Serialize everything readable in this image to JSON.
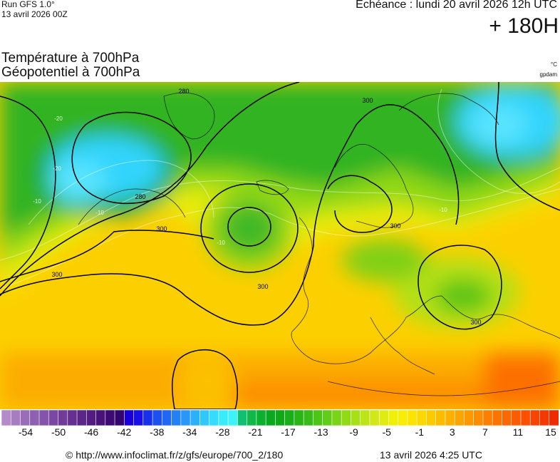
{
  "header": {
    "run": "Run GFS 1.0°",
    "run_date": "13 avril 2026 00Z",
    "echeance": "Échéance : lundi 20 avril 2026 12h UTC",
    "lead": "+ 180H",
    "title_temp": "Température à 700hPa",
    "title_geo": "Géopotentiel à 700hPa",
    "unit_temp": "°C",
    "unit_geo": "gpdam"
  },
  "map": {
    "contour_labels": [
      {
        "text": "280"
      },
      {
        "text": "280"
      },
      {
        "text": "300"
      },
      {
        "text": "300"
      },
      {
        "text": "300"
      },
      {
        "text": "300"
      },
      {
        "text": "300"
      },
      {
        "text": "300"
      }
    ],
    "isotherm_labels": [
      "-20",
      "-20",
      "-10",
      "-10",
      "-10",
      "-10"
    ]
  },
  "legend": {
    "tick_labels": [
      "-54",
      "-50",
      "-46",
      "-42",
      "-38",
      "-34",
      "-28",
      "-21",
      "-17",
      "-13",
      "-9",
      "-5",
      "-1",
      "3",
      "7",
      "11",
      "15"
    ],
    "colors": [
      "#b48ac8",
      "#a77cc0",
      "#9a6db8",
      "#8e60b0",
      "#8454a8",
      "#7a48a0",
      "#703c98",
      "#663090",
      "#5c2688",
      "#521c80",
      "#48127a",
      "#3c0a72",
      "#32066c",
      "#1800d8",
      "#1810e4",
      "#1830ec",
      "#1c50f0",
      "#2068f4",
      "#2480f6",
      "#2898f8",
      "#2cb0fa",
      "#30c8fc",
      "#34dcfe",
      "#38ecfe",
      "#3cf4f8",
      "#10c070",
      "#10b848",
      "#0cb030",
      "#0aa820",
      "#10a818",
      "#1cae18",
      "#2ab418",
      "#38ba18",
      "#4cc418",
      "#62cc18",
      "#7ad418",
      "#92da18",
      "#a8e018",
      "#bce418",
      "#d0e818",
      "#e0ec10",
      "#eef00a",
      "#f8ee04",
      "#fce400",
      "#fcd800",
      "#fcca00",
      "#fcbc00",
      "#fcb000",
      "#fca400",
      "#fc9800",
      "#fc8c00",
      "#fc8000",
      "#fc7400",
      "#fc6800",
      "#fc5c00",
      "#fc5000",
      "#f84400",
      "#f43800",
      "#ee2c00"
    ]
  },
  "footer": {
    "url": "© http://www.infoclimat.fr/z/gfs/europe/700_2/180",
    "timestamp": "13 avril 2026  4:25 UTC"
  }
}
